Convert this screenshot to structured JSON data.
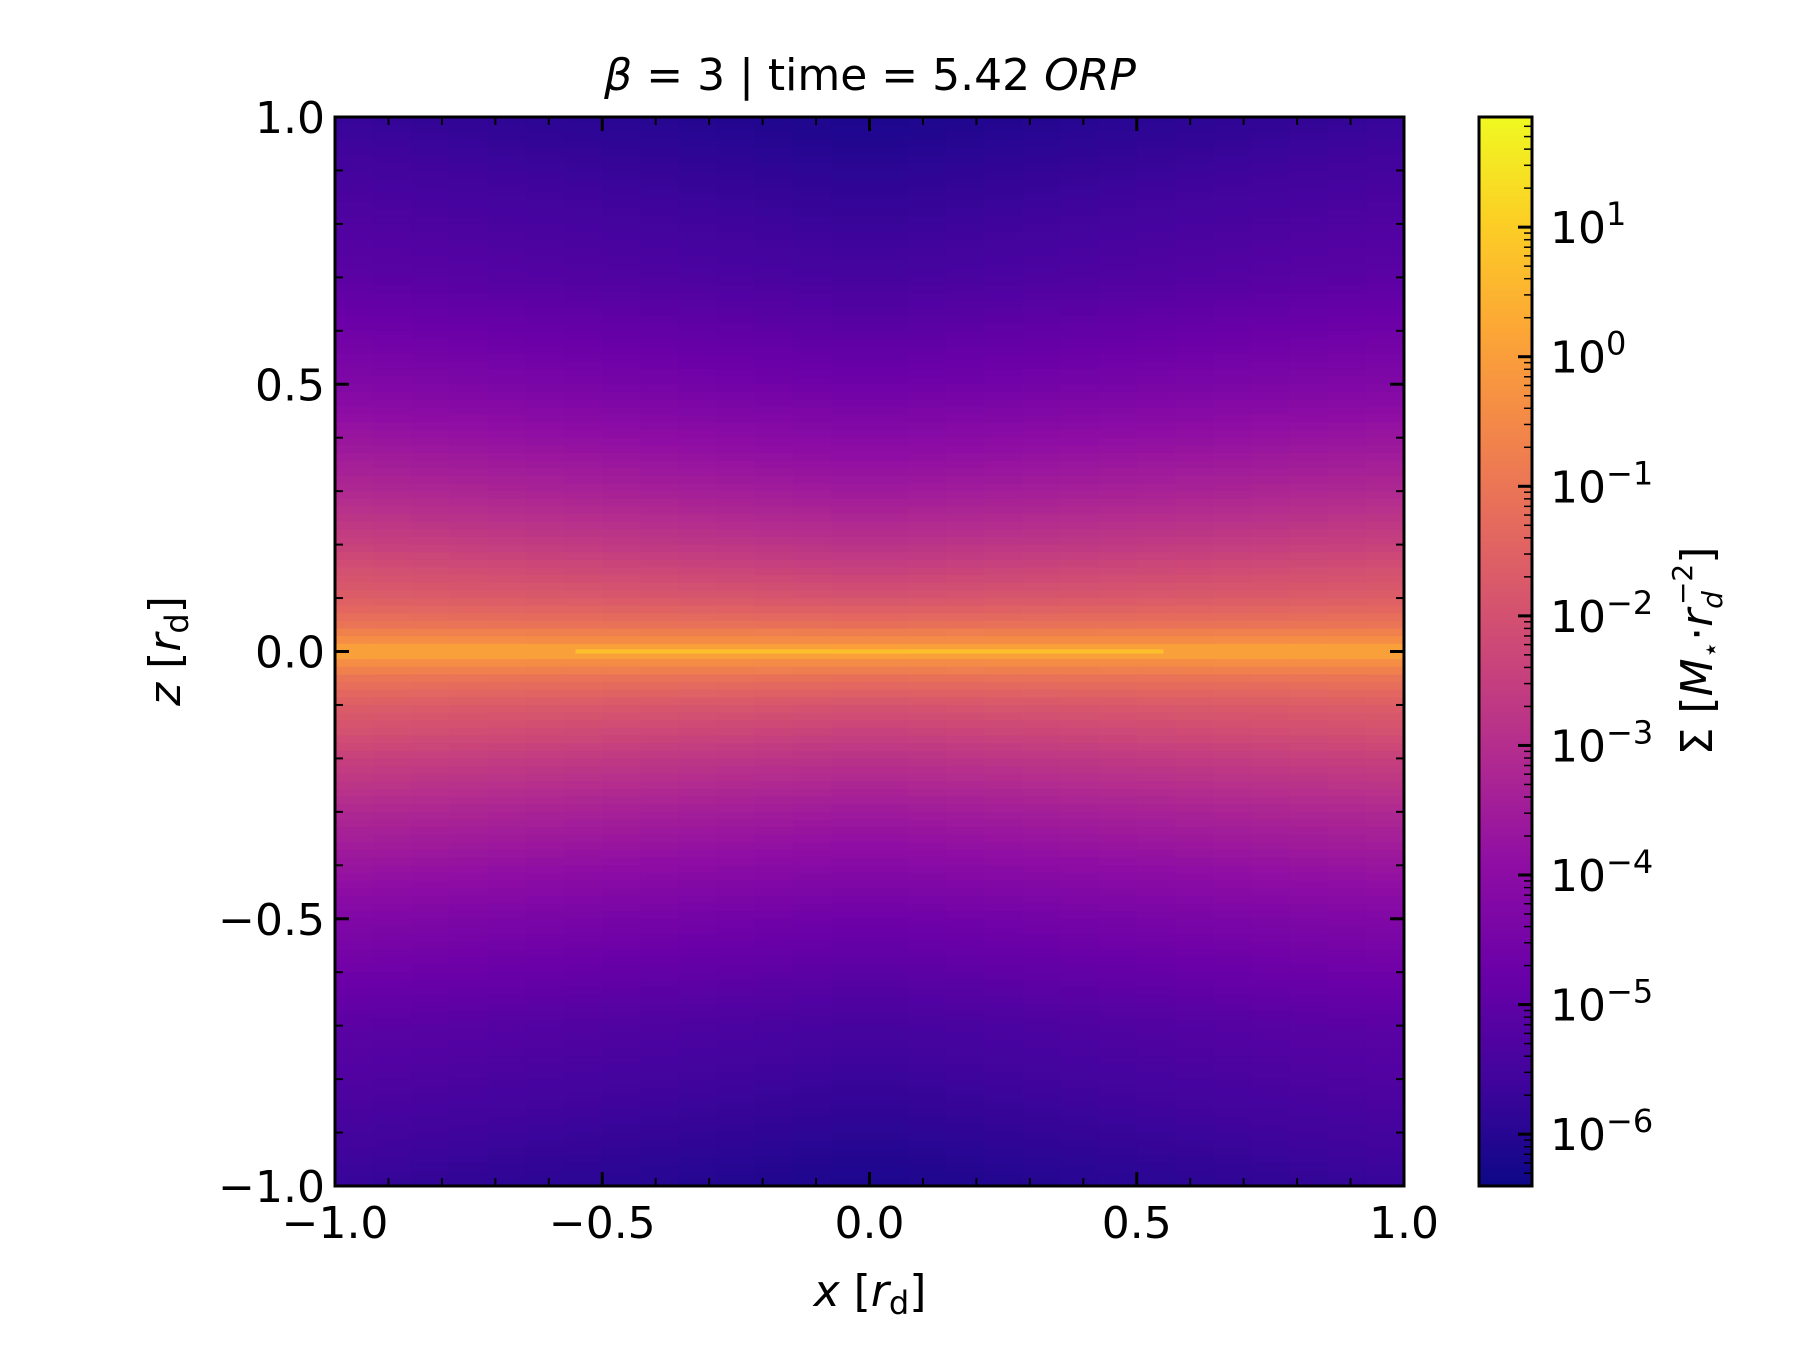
{
  "chart_data": {
    "type": "heatmap",
    "title": {
      "beta_symbol": "β",
      "beta_value": "= 3 | time = 5.42",
      "time_unit": "ORP"
    },
    "xlabel": {
      "var": "x",
      "open": "[",
      "unit": "r",
      "sub": "d",
      "close": "]"
    },
    "ylabel": {
      "var": "z",
      "open": "[",
      "unit": "r",
      "sub": "d",
      "close": "]"
    },
    "xlim": [
      -1.0,
      1.0
    ],
    "ylim": [
      -1.0,
      1.0
    ],
    "x_ticks": [
      -1.0,
      -0.5,
      0.0,
      0.5,
      1.0
    ],
    "x_tick_labels": [
      "−1.0",
      "−0.5",
      "0.0",
      "0.5",
      "1.0"
    ],
    "y_ticks": [
      -1.0,
      -0.5,
      0.0,
      0.5,
      1.0
    ],
    "y_tick_labels": [
      "−1.0",
      "−0.5",
      "0.0",
      "0.5",
      "1.0"
    ],
    "colorbar": {
      "label": "Σ [M⋆ · r_d^−2]",
      "label_parts": {
        "sigma": "Σ",
        "open": "[",
        "m": "M",
        "msub": "⋆",
        "dot": "·",
        "r": "r",
        "rsub": "d",
        "rsup": "−2",
        "close": "]"
      },
      "scale": "log",
      "vmin_log10": -6.4,
      "vmax_log10": 1.85,
      "tick_exponents": [
        -6,
        -5,
        -4,
        -3,
        -2,
        -1,
        0,
        1
      ],
      "tick_base": "10",
      "tick_sup": [
        "−6",
        "−5",
        "−4",
        "−3",
        "−2",
        "−1",
        "0",
        "1"
      ],
      "colormap": "plasma"
    },
    "field_profile_log10": {
      "z": [
        0.0,
        0.02,
        0.05,
        0.1,
        0.2,
        0.3,
        0.5,
        0.7,
        1.0
      ],
      "log10_sigma": [
        0.3,
        -0.4,
        -1.1,
        -1.8,
        -2.7,
        -3.4,
        -4.5,
        -5.3,
        -6.0
      ]
    },
    "grid": false
  }
}
